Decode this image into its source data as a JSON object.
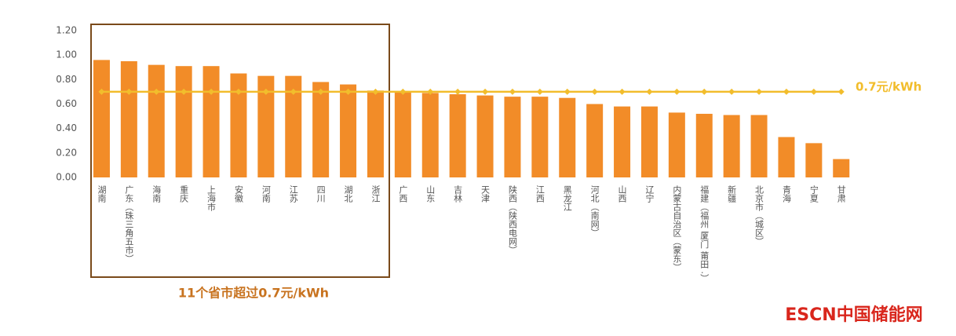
{
  "chart_data": {
    "type": "bar",
    "categories": [
      "湖南",
      "广东（珠三角五市）",
      "海南",
      "重庆",
      "上海市",
      "安徽",
      "河南",
      "江苏",
      "四川",
      "湖北",
      "浙江",
      "广西",
      "山东",
      "吉林",
      "天津",
      "陕西（陕西电网）",
      "江西",
      "黑龙江",
      "河北（南网）",
      "山西",
      "辽宁",
      "内蒙古自治区（蒙东）",
      "福建（福州 厦门 莆田 .）",
      "新疆",
      "北京市（城区）",
      "青海",
      "宁夏",
      "甘肃"
    ],
    "values": [
      0.96,
      0.95,
      0.92,
      0.91,
      0.91,
      0.85,
      0.83,
      0.83,
      0.78,
      0.76,
      0.71,
      0.7,
      0.69,
      0.68,
      0.67,
      0.66,
      0.66,
      0.65,
      0.6,
      0.58,
      0.58,
      0.53,
      0.52,
      0.51,
      0.51,
      0.33,
      0.28,
      0.15
    ],
    "color": "#f28c28",
    "ylim": [
      0,
      1.2
    ],
    "yticks": [
      {
        "value": 0,
        "label": "0.00"
      },
      {
        "value": 0.2,
        "label": "0.20"
      },
      {
        "value": 0.4,
        "label": "0.40"
      },
      {
        "value": 0.6,
        "label": "0.60"
      },
      {
        "value": 0.8,
        "label": "0.80"
      },
      {
        "value": 1.0,
        "label": "1.00"
      },
      {
        "value": 1.2,
        "label": "1.20"
      }
    ],
    "reference_line": {
      "value": 0.7,
      "label": "0.7元/kWh",
      "color": "#f2bd2c"
    },
    "annotation": "11个省市超过0.7元/kWh",
    "watermark": "ESCN中国储能网"
  }
}
